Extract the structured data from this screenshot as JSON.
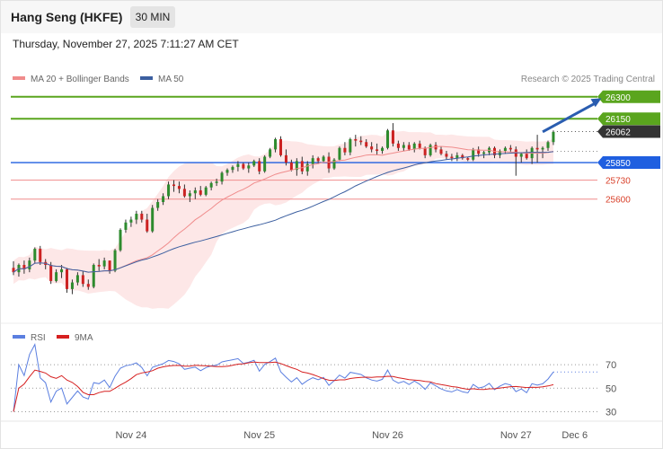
{
  "header": {
    "title": "Hang Seng (HKFE)",
    "interval": "30 MIN",
    "datetime": "Thursday, November 27, 2025 7:11:27 AM CET"
  },
  "colors": {
    "bull": "#2e8b2e",
    "bear": "#cc2222",
    "band": "#fde3e3",
    "ma20": "#f08c8c",
    "ma50": "#3c5fa0",
    "resistance": "#5aa51e",
    "pivot": "#1f5fe0",
    "support": "#f08c8c",
    "current": "#333333",
    "rsi": "#5b7fe0",
    "rsi_ma": "#d62020",
    "arrow": "#2a5db0"
  },
  "chart_data": [
    {
      "type": "candlestick",
      "title": "Hang Seng (HKFE)",
      "legend": [
        {
          "label": "MA 20 + Bollinger Bands",
          "color": "#f08c8c"
        },
        {
          "label": "MA 50",
          "color": "#3c5fa0"
        }
      ],
      "copyright": "Research © 2025 Trading Central",
      "x_labels": [
        {
          "label": "Nov 24",
          "index": 22
        },
        {
          "label": "Nov 25",
          "index": 46
        },
        {
          "label": "Nov 26",
          "index": 70
        },
        {
          "label": "Nov 27",
          "index": 94
        },
        {
          "label": "Dec 6",
          "index": 105
        }
      ],
      "levels": [
        {
          "value": 26300,
          "label": "26300",
          "kind": "resistance"
        },
        {
          "value": 26150,
          "label": "26150",
          "kind": "resistance"
        },
        {
          "value": 26062,
          "label": "26062",
          "kind": "current"
        },
        {
          "value": 25850,
          "label": "25850",
          "kind": "pivot"
        },
        {
          "value": 25730,
          "label": "25730",
          "kind": "support"
        },
        {
          "value": 25600,
          "label": "25600",
          "kind": "support"
        }
      ],
      "arrow": {
        "from": {
          "index": 99,
          "value": 26060
        },
        "to": {
          "index": 110,
          "value": 26290
        }
      },
      "ohlc": [
        [
          25130,
          25175,
          25080,
          25100
        ],
        [
          25100,
          25160,
          25070,
          25150
        ],
        [
          25150,
          25180,
          25090,
          25120
        ],
        [
          25120,
          25200,
          25100,
          25180
        ],
        [
          25180,
          25270,
          25160,
          25260
        ],
        [
          25260,
          25280,
          25150,
          25170
        ],
        [
          25170,
          25190,
          25120,
          25150
        ],
        [
          25150,
          25170,
          25020,
          25040
        ],
        [
          25040,
          25120,
          25030,
          25100
        ],
        [
          25100,
          25150,
          25060,
          25120
        ],
        [
          25120,
          25130,
          24960,
          24985
        ],
        [
          24985,
          25050,
          24950,
          25030
        ],
        [
          25030,
          25100,
          25010,
          25080
        ],
        [
          25080,
          25110,
          25000,
          25020
        ],
        [
          25020,
          25050,
          24980,
          25000
        ],
        [
          25000,
          25160,
          24990,
          25150
        ],
        [
          25150,
          25190,
          25110,
          25140
        ],
        [
          25140,
          25200,
          25120,
          25180
        ],
        [
          25180,
          25180,
          25090,
          25110
        ],
        [
          25110,
          25260,
          25100,
          25250
        ],
        [
          25250,
          25400,
          25240,
          25390
        ],
        [
          25390,
          25460,
          25370,
          25440
        ],
        [
          25440,
          25480,
          25410,
          25460
        ],
        [
          25460,
          25520,
          25430,
          25500
        ],
        [
          25500,
          25520,
          25440,
          25460
        ],
        [
          25460,
          25500,
          25370,
          25380
        ],
        [
          25380,
          25560,
          25370,
          25540
        ],
        [
          25540,
          25600,
          25520,
          25580
        ],
        [
          25580,
          25640,
          25560,
          25620
        ],
        [
          25620,
          25720,
          25600,
          25700
        ],
        [
          25700,
          25730,
          25650,
          25690
        ],
        [
          25690,
          25720,
          25640,
          25670
        ],
        [
          25670,
          25700,
          25610,
          25620
        ],
        [
          25620,
          25660,
          25580,
          25640
        ],
        [
          25640,
          25680,
          25600,
          25660
        ],
        [
          25660,
          25690,
          25620,
          25630
        ],
        [
          25630,
          25690,
          25620,
          25680
        ],
        [
          25680,
          25720,
          25660,
          25710
        ],
        [
          25710,
          25740,
          25690,
          25720
        ],
        [
          25720,
          25790,
          25700,
          25780
        ],
        [
          25780,
          25810,
          25760,
          25800
        ],
        [
          25800,
          25830,
          25780,
          25820
        ],
        [
          25820,
          25860,
          25790,
          25840
        ],
        [
          25840,
          25850,
          25800,
          25810
        ],
        [
          25810,
          25850,
          25780,
          25830
        ],
        [
          25830,
          25870,
          25820,
          25860
        ],
        [
          25860,
          25880,
          25770,
          25790
        ],
        [
          25790,
          25900,
          25780,
          25890
        ],
        [
          25890,
          25950,
          25880,
          25940
        ],
        [
          25940,
          26020,
          25920,
          26010
        ],
        [
          26010,
          26030,
          25890,
          25900
        ],
        [
          25900,
          25940,
          25830,
          25850
        ],
        [
          25850,
          25870,
          25790,
          25800
        ],
        [
          25800,
          25880,
          25760,
          25860
        ],
        [
          25860,
          25890,
          25770,
          25790
        ],
        [
          25790,
          25860,
          25760,
          25840
        ],
        [
          25840,
          25900,
          25810,
          25880
        ],
        [
          25880,
          25890,
          25840,
          25860
        ],
        [
          25860,
          25900,
          25850,
          25890
        ],
        [
          25890,
          25920,
          25780,
          25810
        ],
        [
          25810,
          25880,
          25800,
          25870
        ],
        [
          25870,
          25960,
          25860,
          25950
        ],
        [
          25950,
          25990,
          25900,
          25920
        ],
        [
          25920,
          26020,
          25900,
          26010
        ],
        [
          26010,
          26040,
          25960,
          26000
        ],
        [
          26000,
          26030,
          25970,
          25990
        ],
        [
          25990,
          26010,
          25950,
          25960
        ],
        [
          25960,
          25990,
          25920,
          25940
        ],
        [
          25940,
          25980,
          25900,
          25930
        ],
        [
          25930,
          25960,
          25910,
          25950
        ],
        [
          25950,
          26080,
          25940,
          26070
        ],
        [
          26070,
          26120,
          25960,
          25980
        ],
        [
          25980,
          26000,
          25930,
          25950
        ],
        [
          25950,
          25990,
          25930,
          25970
        ],
        [
          25970,
          25990,
          25930,
          25940
        ],
        [
          25940,
          25990,
          25920,
          25980
        ],
        [
          25980,
          26000,
          25940,
          25950
        ],
        [
          25950,
          25960,
          25880,
          25900
        ],
        [
          25900,
          25980,
          25890,
          25970
        ],
        [
          25970,
          25990,
          25920,
          25940
        ],
        [
          25940,
          25960,
          25900,
          25910
        ],
        [
          25910,
          25930,
          25870,
          25890
        ],
        [
          25890,
          25910,
          25860,
          25880
        ],
        [
          25880,
          25920,
          25860,
          25900
        ],
        [
          25900,
          25910,
          25870,
          25880
        ],
        [
          25880,
          25890,
          25860,
          25870
        ],
        [
          25870,
          25950,
          25860,
          25940
        ],
        [
          25940,
          25960,
          25890,
          25910
        ],
        [
          25910,
          25930,
          25880,
          25920
        ],
        [
          25920,
          25960,
          25900,
          25950
        ],
        [
          25950,
          25960,
          25880,
          25900
        ],
        [
          25900,
          25940,
          25880,
          25930
        ],
        [
          25930,
          25960,
          25910,
          25950
        ],
        [
          25950,
          25970,
          25920,
          25940
        ],
        [
          25940,
          25960,
          25760,
          25890
        ],
        [
          25890,
          25920,
          25850,
          25910
        ],
        [
          25910,
          25940,
          25870,
          25880
        ],
        [
          25880,
          25960,
          25840,
          25950
        ],
        [
          25950,
          26040,
          25850,
          25940
        ],
        [
          25940,
          25960,
          25880,
          25950
        ],
        [
          25950,
          26000,
          25930,
          25990
        ],
        [
          25990,
          26070,
          25970,
          26060
        ]
      ]
    },
    {
      "type": "line",
      "ylabel": "",
      "yticks": [
        70,
        50,
        30
      ],
      "legend": [
        {
          "label": "RSI",
          "color": "#5b7fe0"
        },
        {
          "label": "9MA",
          "color": "#d62020"
        }
      ]
    }
  ]
}
